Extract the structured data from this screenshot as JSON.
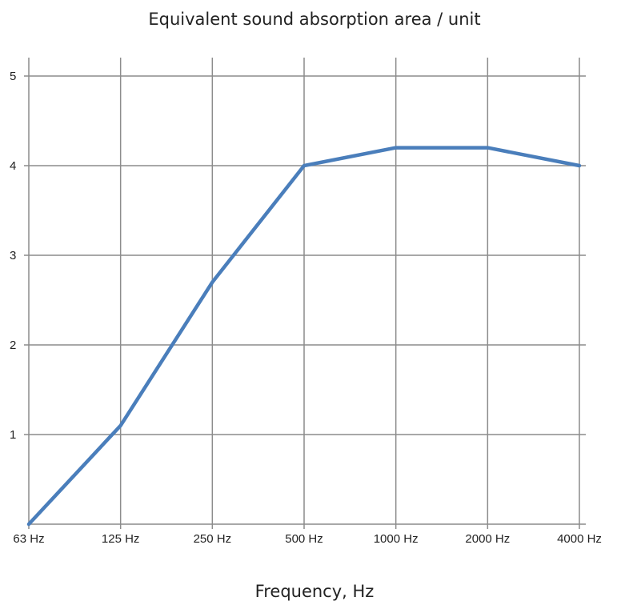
{
  "chart_data": {
    "type": "line",
    "title": "Equivalent sound absorption area / unit",
    "xlabel": "Frequency, Hz",
    "ylabel": "",
    "categories": [
      "63 Hz",
      "125 Hz",
      "250 Hz",
      "500 Hz",
      "1000 Hz",
      "2000 Hz",
      "4000 Hz"
    ],
    "series": [
      {
        "values": [
          0,
          1.1,
          2.7,
          4.0,
          4.2,
          4.2,
          4.0
        ],
        "color": "#4a7ebb"
      }
    ],
    "yticks": [
      "1",
      "2",
      "3",
      "4",
      "5"
    ],
    "ylim": [
      0,
      5.2
    ],
    "grid": true,
    "legend": "none"
  }
}
